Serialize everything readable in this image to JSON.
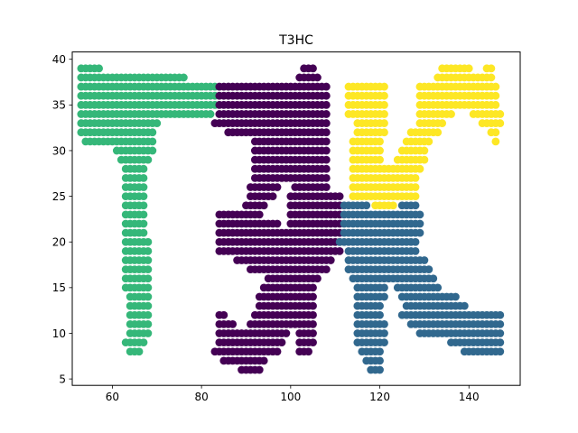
{
  "chart_data": {
    "type": "scatter",
    "title": "T3HC",
    "xlabel": "",
    "ylabel": "",
    "xlim": [
      51,
      151.5
    ],
    "ylim": [
      4.3,
      40.8
    ],
    "xticks": [
      60,
      80,
      100,
      120,
      140
    ],
    "yticks": [
      5,
      10,
      15,
      20,
      25,
      30,
      35,
      40
    ],
    "grid": false,
    "legend": "none",
    "colors": {
      "T": "#35b779",
      "3": "#440154",
      "H": "#31688e",
      "C": "#fde725"
    },
    "series": [
      {
        "color": "#35b779",
        "rows": [
          {
            "y": 39,
            "x_ranges": [
              [
                53,
                57
              ]
            ]
          },
          {
            "y": 38,
            "x_ranges": [
              [
                53,
                76
              ]
            ]
          },
          {
            "y": 37,
            "x_ranges": [
              [
                53,
                83
              ]
            ]
          },
          {
            "y": 36,
            "x_ranges": [
              [
                53,
                83
              ]
            ]
          },
          {
            "y": 35,
            "x_ranges": [
              [
                53,
                83
              ]
            ]
          },
          {
            "y": 34,
            "x_ranges": [
              [
                53,
                82
              ]
            ]
          },
          {
            "y": 33,
            "x_ranges": [
              [
                53,
                70
              ]
            ]
          },
          {
            "y": 32,
            "x_ranges": [
              [
                53,
                69
              ]
            ]
          },
          {
            "y": 31,
            "x_ranges": [
              [
                54,
                69
              ]
            ]
          },
          {
            "y": 30,
            "x_ranges": [
              [
                61,
                69
              ]
            ]
          },
          {
            "y": 29,
            "x_ranges": [
              [
                62,
                68
              ]
            ]
          },
          {
            "y": 28,
            "x_ranges": [
              [
                63,
                67
              ]
            ]
          },
          {
            "y": 27,
            "x_ranges": [
              [
                63,
                67
              ]
            ]
          },
          {
            "y": 26,
            "x_ranges": [
              [
                63,
                67
              ]
            ]
          },
          {
            "y": 25,
            "x_ranges": [
              [
                63,
                67
              ]
            ]
          },
          {
            "y": 24,
            "x_ranges": [
              [
                63,
                67
              ]
            ]
          },
          {
            "y": 23,
            "x_ranges": [
              [
                63,
                67
              ]
            ]
          },
          {
            "y": 22,
            "x_ranges": [
              [
                63,
                67
              ]
            ]
          },
          {
            "y": 21,
            "x_ranges": [
              [
                63,
                67
              ]
            ]
          },
          {
            "y": 20,
            "x_ranges": [
              [
                63,
                68
              ]
            ]
          },
          {
            "y": 19,
            "x_ranges": [
              [
                63,
                68
              ]
            ]
          },
          {
            "y": 18,
            "x_ranges": [
              [
                63,
                68
              ]
            ]
          },
          {
            "y": 17,
            "x_ranges": [
              [
                63,
                68
              ]
            ]
          },
          {
            "y": 16,
            "x_ranges": [
              [
                63,
                68
              ]
            ]
          },
          {
            "y": 15,
            "x_ranges": [
              [
                63,
                68
              ]
            ]
          },
          {
            "y": 14,
            "x_ranges": [
              [
                64,
                68
              ]
            ]
          },
          {
            "y": 13,
            "x_ranges": [
              [
                64,
                68
              ]
            ]
          },
          {
            "y": 12,
            "x_ranges": [
              [
                64,
                68
              ]
            ]
          },
          {
            "y": 11,
            "x_ranges": [
              [
                64,
                68
              ]
            ]
          },
          {
            "y": 10,
            "x_ranges": [
              [
                64,
                68
              ]
            ]
          },
          {
            "y": 9,
            "x_ranges": [
              [
                63,
                67
              ]
            ]
          },
          {
            "y": 8,
            "x_ranges": [
              [
                64,
                66
              ]
            ]
          }
        ]
      },
      {
        "color": "#440154",
        "rows": [
          {
            "y": 39,
            "x_ranges": [
              [
                103,
                105
              ]
            ]
          },
          {
            "y": 38,
            "x_ranges": [
              [
                102,
                106
              ]
            ]
          },
          {
            "y": 37,
            "x_ranges": [
              [
                84,
                108
              ]
            ]
          },
          {
            "y": 36,
            "x_ranges": [
              [
                84,
                108
              ]
            ]
          },
          {
            "y": 35,
            "x_ranges": [
              [
                84,
                108
              ]
            ]
          },
          {
            "y": 34,
            "x_ranges": [
              [
                84,
                108
              ]
            ]
          },
          {
            "y": 33,
            "x_ranges": [
              [
                83,
                108
              ]
            ]
          },
          {
            "y": 32,
            "x_ranges": [
              [
                86,
                108
              ]
            ]
          },
          {
            "y": 31,
            "x_ranges": [
              [
                92,
                108
              ]
            ]
          },
          {
            "y": 30,
            "x_ranges": [
              [
                92,
                108
              ]
            ]
          },
          {
            "y": 29,
            "x_ranges": [
              [
                92,
                108
              ]
            ]
          },
          {
            "y": 28,
            "x_ranges": [
              [
                92,
                108
              ]
            ]
          },
          {
            "y": 27,
            "x_ranges": [
              [
                92,
                108
              ]
            ]
          },
          {
            "y": 26,
            "x_ranges": [
              [
                91,
                97
              ],
              [
                101,
                108
              ]
            ]
          },
          {
            "y": 25,
            "x_ranges": [
              [
                91,
                96
              ],
              [
                100,
                111
              ]
            ]
          },
          {
            "y": 24,
            "x_ranges": [
              [
                90,
                94
              ],
              [
                100,
                111
              ]
            ]
          },
          {
            "y": 23,
            "x_ranges": [
              [
                84,
                93
              ],
              [
                100,
                111
              ]
            ]
          },
          {
            "y": 22,
            "x_ranges": [
              [
                84,
                97
              ],
              [
                100,
                111
              ]
            ]
          },
          {
            "y": 21,
            "x_ranges": [
              [
                84,
                111
              ]
            ]
          },
          {
            "y": 20,
            "x_ranges": [
              [
                84,
                111
              ]
            ]
          },
          {
            "y": 19,
            "x_ranges": [
              [
                84,
                111
              ]
            ]
          },
          {
            "y": 18,
            "x_ranges": [
              [
                88,
                109
              ]
            ]
          },
          {
            "y": 17,
            "x_ranges": [
              [
                91,
                108
              ]
            ]
          },
          {
            "y": 16,
            "x_ranges": [
              [
                95,
                106
              ]
            ]
          },
          {
            "y": 15,
            "x_ranges": [
              [
                94,
                105
              ]
            ]
          },
          {
            "y": 14,
            "x_ranges": [
              [
                93,
                105
              ]
            ]
          },
          {
            "y": 13,
            "x_ranges": [
              [
                93,
                105
              ]
            ]
          },
          {
            "y": 12,
            "x_ranges": [
              [
                84,
                85
              ],
              [
                92,
                105
              ]
            ]
          },
          {
            "y": 11,
            "x_ranges": [
              [
                84,
                87
              ],
              [
                91,
                105
              ]
            ]
          },
          {
            "y": 10,
            "x_ranges": [
              [
                84,
                99
              ],
              [
                102,
                105
              ]
            ]
          },
          {
            "y": 9,
            "x_ranges": [
              [
                84,
                98
              ],
              [
                102,
                105
              ]
            ]
          },
          {
            "y": 8,
            "x_ranges": [
              [
                83,
                97
              ],
              [
                102,
                104
              ]
            ]
          },
          {
            "y": 7,
            "x_ranges": [
              [
                85,
                94
              ]
            ]
          },
          {
            "y": 6,
            "x_ranges": [
              [
                89,
                93
              ]
            ]
          }
        ]
      },
      {
        "color": "#31688e",
        "rows": [
          {
            "y": 24,
            "x_ranges": [
              [
                112,
                117
              ],
              [
                125,
                128
              ]
            ]
          },
          {
            "y": 23,
            "x_ranges": [
              [
                112,
                129
              ]
            ]
          },
          {
            "y": 22,
            "x_ranges": [
              [
                112,
                129
              ]
            ]
          },
          {
            "y": 21,
            "x_ranges": [
              [
                112,
                129
              ]
            ]
          },
          {
            "y": 20,
            "x_ranges": [
              [
                111,
                128
              ]
            ]
          },
          {
            "y": 19,
            "x_ranges": [
              [
                113,
                128
              ]
            ]
          },
          {
            "y": 18,
            "x_ranges": [
              [
                113,
                130
              ]
            ]
          },
          {
            "y": 17,
            "x_ranges": [
              [
                113,
                131
              ]
            ]
          },
          {
            "y": 16,
            "x_ranges": [
              [
                114,
                132
              ]
            ]
          },
          {
            "y": 15,
            "x_ranges": [
              [
                115,
                121
              ],
              [
                124,
                133
              ]
            ]
          },
          {
            "y": 14,
            "x_ranges": [
              [
                115,
                121
              ],
              [
                125,
                137
              ]
            ]
          },
          {
            "y": 13,
            "x_ranges": [
              [
                115,
                120
              ],
              [
                126,
                139
              ]
            ]
          },
          {
            "y": 12,
            "x_ranges": [
              [
                115,
                120
              ],
              [
                125,
                147
              ]
            ]
          },
          {
            "y": 11,
            "x_ranges": [
              [
                115,
                121
              ],
              [
                127,
                147
              ]
            ]
          },
          {
            "y": 10,
            "x_ranges": [
              [
                115,
                121
              ],
              [
                129,
                147
              ]
            ]
          },
          {
            "y": 9,
            "x_ranges": [
              [
                115,
                121
              ],
              [
                136,
                147
              ]
            ]
          },
          {
            "y": 8,
            "x_ranges": [
              [
                116,
                120
              ],
              [
                139,
                147
              ]
            ]
          },
          {
            "y": 7,
            "x_ranges": [
              [
                117,
                120
              ]
            ]
          },
          {
            "y": 6,
            "x_ranges": [
              [
                118,
                120
              ]
            ]
          }
        ]
      },
      {
        "color": "#fde725",
        "rows": [
          {
            "y": 39,
            "x_ranges": [
              [
                134,
                140
              ],
              [
                144,
                145
              ]
            ]
          },
          {
            "y": 38,
            "x_ranges": [
              [
                133,
                145
              ]
            ]
          },
          {
            "y": 37,
            "x_ranges": [
              [
                113,
                121
              ],
              [
                129,
                146
              ]
            ]
          },
          {
            "y": 36,
            "x_ranges": [
              [
                113,
                121
              ],
              [
                129,
                146
              ]
            ]
          },
          {
            "y": 35,
            "x_ranges": [
              [
                113,
                121
              ],
              [
                129,
                146
              ]
            ]
          },
          {
            "y": 34,
            "x_ranges": [
              [
                113,
                121
              ],
              [
                129,
                136
              ],
              [
                141,
                147
              ]
            ]
          },
          {
            "y": 33,
            "x_ranges": [
              [
                115,
                121
              ],
              [
                129,
                134
              ],
              [
                143,
                147
              ]
            ]
          },
          {
            "y": 32,
            "x_ranges": [
              [
                115,
                121
              ],
              [
                127,
                133
              ],
              [
                145,
                146
              ]
            ]
          },
          {
            "y": 31,
            "x_ranges": [
              [
                114,
                120
              ],
              [
                126,
                131
              ],
              [
                146,
                146
              ]
            ]
          },
          {
            "y": 30,
            "x_ranges": [
              [
                114,
                120
              ],
              [
                125,
                130
              ]
            ]
          },
          {
            "y": 29,
            "x_ranges": [
              [
                114,
                120
              ],
              [
                124,
                130
              ]
            ]
          },
          {
            "y": 28,
            "x_ranges": [
              [
                114,
                129
              ]
            ]
          },
          {
            "y": 27,
            "x_ranges": [
              [
                114,
                128
              ]
            ]
          },
          {
            "y": 26,
            "x_ranges": [
              [
                114,
                128
              ]
            ]
          },
          {
            "y": 25,
            "x_ranges": [
              [
                114,
                128
              ]
            ]
          },
          {
            "y": 24,
            "x_ranges": [
              [
                119,
                123
              ]
            ]
          }
        ]
      }
    ]
  }
}
